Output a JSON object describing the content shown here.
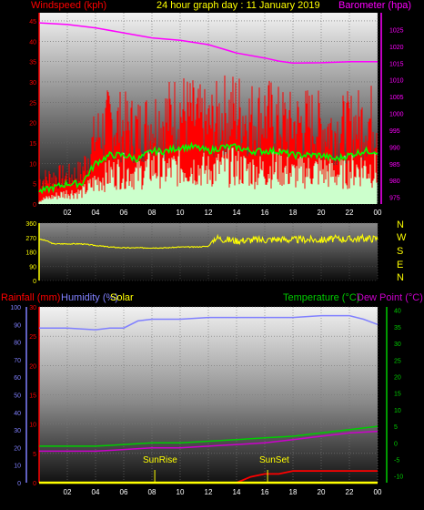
{
  "header": {
    "left_title": "Windspeed (kph)",
    "center_title": "24 hour graph day : 11 January 2019",
    "right_title": "Barometer (hpa)"
  },
  "middle": {
    "compass": [
      "N",
      "W",
      "S",
      "E",
      "N"
    ]
  },
  "bottom_header": {
    "rainfall": "Rainfall (mm)",
    "humidity": "Humidity (%)",
    "solar": "Solar",
    "temperature": "Temperature (°C)",
    "dewpoint": "Dew Point (°C)"
  },
  "annotations": {
    "sunrise": "SunRise",
    "sunset": "SunSet"
  },
  "colors": {
    "wind": "#ff0000",
    "gust": "#ff0000",
    "avg_wind": "#00ff00",
    "wind_lull": "#ccffcc",
    "barometer": "#ff00ff",
    "direction": "#ffff00",
    "rain": "#ff0000",
    "humidity": "#8080ff",
    "temperature": "#00cc00",
    "dewpoint": "#cc00cc",
    "solar": "#ffff00",
    "header_left": "#ff0000",
    "header_center": "#ffff00",
    "header_right": "#ff00ff",
    "compass": "#ffff00"
  },
  "chart_data": [
    {
      "type": "line",
      "title": "24 hour graph day : 11 January 2019",
      "x_ticks": [
        "02",
        "04",
        "06",
        "08",
        "10",
        "12",
        "14",
        "16",
        "18",
        "20",
        "22",
        "00"
      ],
      "x_hours": [
        2,
        4,
        6,
        8,
        10,
        12,
        14,
        16,
        18,
        20,
        22,
        24
      ],
      "y_left": {
        "label": "Windspeed (kph)",
        "ticks": [
          0,
          5,
          10,
          15,
          20,
          25,
          30,
          35,
          40,
          45
        ],
        "range": [
          0,
          47
        ]
      },
      "y_right": {
        "label": "Barometer (hpa)",
        "ticks": [
          975,
          980,
          985,
          990,
          995,
          1000,
          1005,
          1010,
          1015,
          1020,
          1025
        ],
        "range": [
          973,
          1030
        ]
      },
      "series": [
        {
          "name": "Barometer (hpa)",
          "axis": "right",
          "x": [
            0,
            2,
            4,
            6,
            8,
            10,
            12,
            14,
            16,
            17,
            18,
            20,
            22,
            24
          ],
          "y": [
            1027,
            1026.5,
            1025.5,
            1024,
            1022.5,
            1021.8,
            1020.5,
            1018,
            1016.5,
            1015.6,
            1015,
            1015.1,
            1015.4,
            1015.4
          ]
        },
        {
          "name": "Gust",
          "axis": "left",
          "x": [
            0,
            1,
            2,
            3,
            4,
            5,
            6,
            7,
            8,
            9,
            10,
            11,
            12,
            13,
            14,
            15,
            16,
            17,
            18,
            19,
            20,
            21,
            22,
            23,
            24
          ],
          "y": [
            6,
            7,
            7,
            8,
            17,
            21,
            20,
            19,
            21,
            22,
            24,
            22,
            20,
            23,
            24,
            22,
            23,
            21,
            20,
            21,
            20,
            19,
            20,
            21,
            22
          ]
        },
        {
          "name": "Average Speed",
          "axis": "left",
          "x": [
            0,
            1,
            2,
            3,
            4,
            5,
            6,
            7,
            8,
            9,
            10,
            11,
            12,
            13,
            14,
            15,
            16,
            17,
            18,
            19,
            20,
            21,
            22,
            23,
            24
          ],
          "y": [
            3,
            4,
            5,
            5,
            10,
            12,
            12,
            11,
            13,
            13,
            14,
            14,
            13,
            14,
            14,
            13,
            13,
            13,
            12,
            12,
            12,
            11,
            12,
            13,
            13
          ]
        },
        {
          "name": "Wind",
          "axis": "left",
          "x": [
            0,
            1,
            2,
            3,
            4,
            5,
            6,
            7,
            8,
            9,
            10,
            11,
            12,
            13,
            14,
            15,
            16,
            17,
            18,
            19,
            20,
            21,
            22,
            23,
            24
          ],
          "y": [
            1,
            2,
            3,
            3,
            6,
            8,
            9,
            8,
            10,
            9,
            10,
            10,
            9,
            10,
            10,
            9,
            9,
            10,
            8,
            9,
            9,
            8,
            9,
            10,
            9
          ]
        }
      ]
    },
    {
      "type": "line",
      "title": "",
      "x_ticks": [
        "02",
        "04",
        "06",
        "08",
        "10",
        "12",
        "14",
        "16",
        "18",
        "20",
        "22",
        "00"
      ],
      "y_left": {
        "label": "",
        "ticks": [
          0,
          90,
          180,
          270,
          360
        ],
        "range": [
          0,
          360
        ]
      },
      "series": [
        {
          "name": "Wind Direction",
          "x": [
            0,
            0.5,
            1,
            2,
            3,
            4,
            5,
            6,
            7,
            8,
            9,
            10,
            11,
            12,
            12.5,
            13,
            14,
            15,
            16,
            17,
            18,
            19,
            20,
            21,
            22,
            23,
            24
          ],
          "y": [
            260,
            250,
            230,
            230,
            230,
            220,
            210,
            205,
            205,
            205,
            205,
            210,
            210,
            215,
            270,
            260,
            250,
            255,
            255,
            260,
            255,
            258,
            255,
            262,
            260,
            265,
            262
          ]
        }
      ]
    },
    {
      "type": "line",
      "title": "",
      "x_ticks": [
        "02",
        "04",
        "06",
        "08",
        "10",
        "12",
        "14",
        "16",
        "18",
        "20",
        "22",
        "00"
      ],
      "y_left": {
        "label": "Rainfall (mm) / Humidity (%)",
        "ticks": [
          0,
          5,
          10,
          15,
          20,
          25,
          30
        ],
        "range": [
          0,
          30
        ]
      },
      "y_humidity": {
        "ticks": [
          0,
          10,
          20,
          30,
          40,
          50,
          60,
          70,
          80,
          90,
          100
        ],
        "range": [
          0,
          100
        ]
      },
      "y_right": {
        "label": "Temperature (°C) / Dew Point (°C)",
        "ticks": [
          -10,
          -5,
          0,
          5,
          10,
          15,
          20,
          25,
          30,
          35,
          40
        ],
        "range": [
          -12,
          41
        ]
      },
      "series": [
        {
          "name": "Humidity (%)",
          "axis": "humidity",
          "x": [
            0,
            2,
            4,
            5,
            6,
            7,
            8,
            10,
            12,
            14,
            16,
            18,
            20,
            22,
            23,
            24
          ],
          "y": [
            88,
            88,
            87,
            88,
            88,
            92,
            93,
            93,
            94,
            94,
            94,
            94,
            95,
            95,
            93,
            90
          ]
        },
        {
          "name": "Temperature (°C)",
          "axis": "right",
          "x": [
            0,
            2,
            4,
            6,
            8,
            10,
            12,
            14,
            16,
            18,
            20,
            22,
            24
          ],
          "y": [
            -1,
            -1,
            -1,
            -0.5,
            0,
            0,
            0.5,
            1,
            1.5,
            2,
            3,
            4,
            5
          ]
        },
        {
          "name": "Dew Point (°C)",
          "axis": "right",
          "x": [
            0,
            2,
            4,
            6,
            8,
            10,
            12,
            14,
            16,
            18,
            20,
            22,
            24
          ],
          "y": [
            -2.5,
            -2.5,
            -2.5,
            -2,
            -1.5,
            -1.5,
            -1,
            -0.5,
            0,
            1,
            2,
            3,
            3.5
          ]
        },
        {
          "name": "Rainfall (mm)",
          "axis": "left",
          "x": [
            0,
            14,
            14.5,
            15,
            16,
            17,
            18,
            20,
            22,
            23,
            24
          ],
          "y": [
            0,
            0,
            0.5,
            1,
            1.5,
            1.5,
            2,
            2,
            2,
            2,
            2
          ]
        },
        {
          "name": "Solar",
          "axis": "left",
          "x": [
            0,
            24
          ],
          "y": [
            0,
            0
          ]
        }
      ],
      "annotations": [
        {
          "text": "SunRise",
          "x": 8.2
        },
        {
          "text": "SunSet",
          "x": 16.2
        }
      ]
    }
  ]
}
